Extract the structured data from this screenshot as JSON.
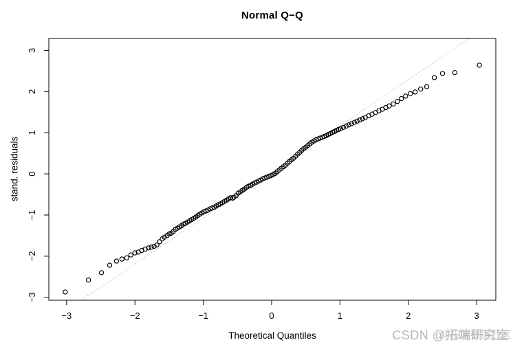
{
  "watermark": {
    "primary": "CSDN @拓端研究室",
    "secondary": "@拓端数据社区"
  },
  "chart_data": {
    "type": "scatter",
    "title": "Normal Q−Q",
    "xlabel": "Theoretical Quantiles",
    "ylabel": "stand. residuals",
    "x_ticks": [
      -3,
      -2,
      -1,
      0,
      1,
      2,
      3
    ],
    "y_ticks": [
      -3,
      -2,
      -1,
      0,
      1,
      2,
      3
    ],
    "xlim": [
      -3.26,
      3.28
    ],
    "ylim": [
      -3.07,
      3.29
    ],
    "grid": false,
    "frame_color": "#000000",
    "marker": {
      "shape": "open-circle",
      "color": "#000000",
      "radius_px": 3.1
    },
    "ref_line": {
      "slope": 1.12,
      "intercept": 0.05,
      "style": "dotted",
      "color": "#999999"
    },
    "points": [
      [
        -3.02,
        -2.87
      ],
      [
        -2.68,
        -2.58
      ],
      [
        -2.49,
        -2.4
      ],
      [
        -2.37,
        -2.22
      ],
      [
        -2.27,
        -2.12
      ],
      [
        -2.19,
        -2.07
      ],
      [
        -2.12,
        -2.04
      ],
      [
        -2.06,
        -1.97
      ],
      [
        -2.0,
        -1.92
      ],
      [
        -1.95,
        -1.9
      ],
      [
        -1.9,
        -1.86
      ],
      [
        -1.85,
        -1.83
      ],
      [
        -1.8,
        -1.8
      ],
      [
        -1.76,
        -1.78
      ],
      [
        -1.72,
        -1.76
      ],
      [
        -1.68,
        -1.73
      ],
      [
        -1.64,
        -1.65
      ],
      [
        -1.6,
        -1.58
      ],
      [
        -1.57,
        -1.54
      ],
      [
        -1.53,
        -1.5
      ],
      [
        -1.5,
        -1.46
      ],
      [
        -1.47,
        -1.44
      ],
      [
        -1.44,
        -1.4
      ],
      [
        -1.41,
        -1.35
      ],
      [
        -1.38,
        -1.32
      ],
      [
        -1.35,
        -1.29
      ],
      [
        -1.32,
        -1.26
      ],
      [
        -1.29,
        -1.22
      ],
      [
        -1.26,
        -1.2
      ],
      [
        -1.23,
        -1.17
      ],
      [
        -1.2,
        -1.14
      ],
      [
        -1.17,
        -1.11
      ],
      [
        -1.14,
        -1.08
      ],
      [
        -1.11,
        -1.05
      ],
      [
        -1.08,
        -1.01
      ],
      [
        -1.05,
        -0.98
      ],
      [
        -1.02,
        -0.95
      ],
      [
        -0.99,
        -0.92
      ],
      [
        -0.96,
        -0.9
      ],
      [
        -0.93,
        -0.88
      ],
      [
        -0.9,
        -0.85
      ],
      [
        -0.87,
        -0.83
      ],
      [
        -0.84,
        -0.81
      ],
      [
        -0.81,
        -0.78
      ],
      [
        -0.78,
        -0.75
      ],
      [
        -0.75,
        -0.73
      ],
      [
        -0.72,
        -0.7
      ],
      [
        -0.69,
        -0.67
      ],
      [
        -0.66,
        -0.64
      ],
      [
        -0.63,
        -0.61
      ],
      [
        -0.6,
        -0.58
      ],
      [
        -0.57,
        -0.59
      ],
      [
        -0.55,
        -0.57
      ],
      [
        -0.52,
        -0.53
      ],
      [
        -0.49,
        -0.47
      ],
      [
        -0.46,
        -0.44
      ],
      [
        -0.43,
        -0.4
      ],
      [
        -0.4,
        -0.37
      ],
      [
        -0.37,
        -0.33
      ],
      [
        -0.34,
        -0.3
      ],
      [
        -0.31,
        -0.28
      ],
      [
        -0.28,
        -0.25
      ],
      [
        -0.25,
        -0.22
      ],
      [
        -0.22,
        -0.2
      ],
      [
        -0.19,
        -0.17
      ],
      [
        -0.16,
        -0.15
      ],
      [
        -0.13,
        -0.12
      ],
      [
        -0.1,
        -0.1
      ],
      [
        -0.07,
        -0.08
      ],
      [
        -0.04,
        -0.06
      ],
      [
        -0.01,
        -0.04
      ],
      [
        0.02,
        -0.02
      ],
      [
        0.05,
        0.01
      ],
      [
        0.08,
        0.05
      ],
      [
        0.11,
        0.09
      ],
      [
        0.14,
        0.13
      ],
      [
        0.17,
        0.17
      ],
      [
        0.2,
        0.21
      ],
      [
        0.23,
        0.26
      ],
      [
        0.26,
        0.3
      ],
      [
        0.29,
        0.34
      ],
      [
        0.32,
        0.38
      ],
      [
        0.35,
        0.43
      ],
      [
        0.38,
        0.48
      ],
      [
        0.41,
        0.52
      ],
      [
        0.44,
        0.57
      ],
      [
        0.47,
        0.61
      ],
      [
        0.5,
        0.65
      ],
      [
        0.53,
        0.69
      ],
      [
        0.56,
        0.73
      ],
      [
        0.59,
        0.77
      ],
      [
        0.62,
        0.8
      ],
      [
        0.65,
        0.83
      ],
      [
        0.68,
        0.85
      ],
      [
        0.71,
        0.87
      ],
      [
        0.74,
        0.89
      ],
      [
        0.77,
        0.91
      ],
      [
        0.8,
        0.93
      ],
      [
        0.83,
        0.96
      ],
      [
        0.86,
        0.98
      ],
      [
        0.89,
        1.01
      ],
      [
        0.92,
        1.03
      ],
      [
        0.95,
        1.06
      ],
      [
        0.98,
        1.08
      ],
      [
        1.01,
        1.1
      ],
      [
        1.05,
        1.13
      ],
      [
        1.09,
        1.16
      ],
      [
        1.13,
        1.19
      ],
      [
        1.17,
        1.22
      ],
      [
        1.21,
        1.25
      ],
      [
        1.25,
        1.28
      ],
      [
        1.29,
        1.31
      ],
      [
        1.33,
        1.34
      ],
      [
        1.37,
        1.37
      ],
      [
        1.42,
        1.41
      ],
      [
        1.47,
        1.45
      ],
      [
        1.52,
        1.49
      ],
      [
        1.57,
        1.53
      ],
      [
        1.62,
        1.57
      ],
      [
        1.67,
        1.61
      ],
      [
        1.72,
        1.65
      ],
      [
        1.78,
        1.7
      ],
      [
        1.84,
        1.76
      ],
      [
        1.9,
        1.83
      ],
      [
        1.96,
        1.89
      ],
      [
        2.03,
        1.95
      ],
      [
        2.1,
        1.99
      ],
      [
        2.18,
        2.06
      ],
      [
        2.27,
        2.12
      ],
      [
        2.38,
        2.34
      ],
      [
        2.5,
        2.44
      ],
      [
        2.68,
        2.46
      ],
      [
        3.04,
        2.64
      ]
    ]
  }
}
